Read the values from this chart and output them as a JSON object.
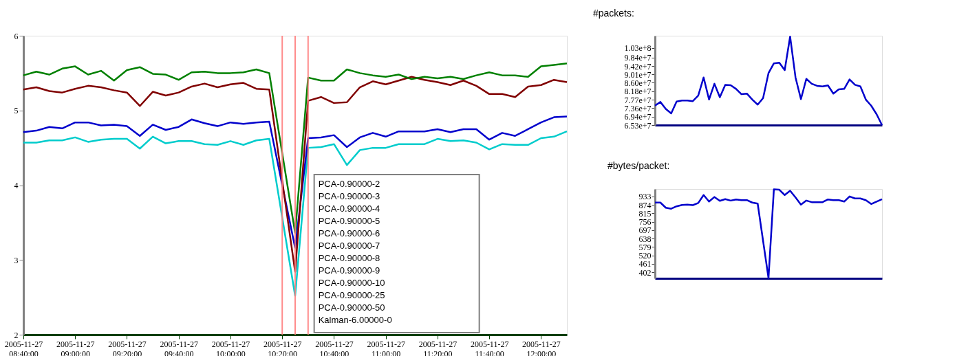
{
  "chart_data": [
    {
      "type": "line",
      "x": [
        "2005-11-27T08:40",
        "2005-11-27T08:45",
        "2005-11-27T08:50",
        "2005-11-27T08:55",
        "2005-11-27T09:00",
        "2005-11-27T09:05",
        "2005-11-27T09:10",
        "2005-11-27T09:15",
        "2005-11-27T09:20",
        "2005-11-27T09:25",
        "2005-11-27T09:30",
        "2005-11-27T09:35",
        "2005-11-27T09:40",
        "2005-11-27T09:45",
        "2005-11-27T09:50",
        "2005-11-27T09:55",
        "2005-11-27T10:00",
        "2005-11-27T10:05",
        "2005-11-27T10:10",
        "2005-11-27T10:15",
        "2005-11-27T10:25",
        "2005-11-27T10:30",
        "2005-11-27T10:35",
        "2005-11-27T10:40",
        "2005-11-27T10:45",
        "2005-11-27T10:50",
        "2005-11-27T10:55",
        "2005-11-27T11:00",
        "2005-11-27T11:05",
        "2005-11-27T11:10",
        "2005-11-27T11:15",
        "2005-11-27T11:20",
        "2005-11-27T11:25",
        "2005-11-27T11:30",
        "2005-11-27T11:35",
        "2005-11-27T11:40",
        "2005-11-27T11:45",
        "2005-11-27T11:50",
        "2005-11-27T11:55",
        "2005-11-27T12:00",
        "2005-11-27T12:05",
        "2005-11-27T12:10"
      ],
      "series": [
        {
          "color": "#00cccc",
          "values": [
            4.57,
            4.57,
            4.6,
            4.6,
            4.64,
            4.58,
            4.61,
            4.62,
            4.62,
            4.49,
            4.65,
            4.56,
            4.59,
            4.59,
            4.55,
            4.54,
            4.59,
            4.54,
            4.6,
            4.62,
            2.52,
            4.5,
            4.51,
            4.55,
            4.27,
            4.47,
            4.5,
            4.5,
            4.55,
            4.55,
            4.55,
            4.62,
            4.59,
            4.6,
            4.57,
            4.48,
            4.55,
            4.54,
            4.54,
            4.63,
            4.65,
            4.72
          ]
        },
        {
          "color": "#0000cc",
          "values": [
            4.71,
            4.73,
            4.78,
            4.76,
            4.84,
            4.84,
            4.8,
            4.81,
            4.79,
            4.66,
            4.81,
            4.74,
            4.78,
            4.88,
            4.83,
            4.79,
            4.84,
            4.82,
            4.84,
            4.85,
            3.16,
            4.63,
            4.64,
            4.67,
            4.51,
            4.64,
            4.7,
            4.65,
            4.72,
            4.72,
            4.72,
            4.75,
            4.71,
            4.75,
            4.75,
            4.61,
            4.7,
            4.66,
            4.75,
            4.84,
            4.91,
            4.92
          ]
        },
        {
          "color": "#800000",
          "values": [
            5.28,
            5.31,
            5.26,
            5.24,
            5.29,
            5.33,
            5.31,
            5.27,
            5.24,
            5.06,
            5.25,
            5.2,
            5.24,
            5.32,
            5.36,
            5.31,
            5.35,
            5.37,
            5.29,
            5.28,
            2.84,
            5.13,
            5.18,
            5.1,
            5.11,
            5.31,
            5.39,
            5.35,
            5.4,
            5.45,
            5.41,
            5.38,
            5.34,
            5.4,
            5.33,
            5.22,
            5.22,
            5.18,
            5.32,
            5.34,
            5.41,
            5.38
          ]
        },
        {
          "color": "#008000",
          "values": [
            5.47,
            5.52,
            5.48,
            5.56,
            5.59,
            5.48,
            5.53,
            5.4,
            5.54,
            5.58,
            5.49,
            5.48,
            5.41,
            5.51,
            5.52,
            5.5,
            5.5,
            5.51,
            5.55,
            5.5,
            3.36,
            5.44,
            5.4,
            5.4,
            5.55,
            5.5,
            5.47,
            5.45,
            5.48,
            5.42,
            5.45,
            5.43,
            5.45,
            5.42,
            5.47,
            5.51,
            5.47,
            5.47,
            5.45,
            5.59,
            5.61,
            5.63
          ]
        }
      ],
      "xlim": [
        "2005-11-27T08:40",
        "2005-11-27T12:10"
      ],
      "xticks": [
        {
          "value": "2005-11-27T08:40",
          "label": "2005-11-27 08:40:00"
        },
        {
          "value": "2005-11-27T09:00",
          "label": "2005-11-27 09:00:00"
        },
        {
          "value": "2005-11-27T09:20",
          "label": "2005-11-27 09:20:00"
        },
        {
          "value": "2005-11-27T09:40",
          "label": "2005-11-27 09:40:00"
        },
        {
          "value": "2005-11-27T10:00",
          "label": "2005-11-27 10:00:00"
        },
        {
          "value": "2005-11-27T10:20",
          "label": "2005-11-27 10:20:00"
        },
        {
          "value": "2005-11-27T10:40",
          "label": "2005-11-27 10:40:00"
        },
        {
          "value": "2005-11-27T11:00",
          "label": "2005-11-27 11:00:00"
        },
        {
          "value": "2005-11-27T11:20",
          "label": "2005-11-27 11:20:00"
        },
        {
          "value": "2005-11-27T11:40",
          "label": "2005-11-27 11:40:00"
        },
        {
          "value": "2005-11-27T12:00",
          "label": "2005-11-27 12:00:00"
        }
      ],
      "ylim": [
        2,
        6
      ],
      "yticks": [
        2,
        3,
        4,
        5,
        6
      ],
      "ref_lines": [
        {
          "axis": "x",
          "value": "2005-11-27T10:20",
          "color": "#ff8080"
        },
        {
          "axis": "x",
          "value": "2005-11-27T10:25",
          "color": "#ff8080"
        },
        {
          "axis": "x",
          "value": "2005-11-27T10:30",
          "color": "#ff8080"
        }
      ],
      "annotations": [
        "PCA-0.90000-2",
        "PCA-0.90000-3",
        "PCA-0.90000-4",
        "PCA-0.90000-5",
        "PCA-0.90000-6",
        "PCA-0.90000-7",
        "PCA-0.90000-8",
        "PCA-0.90000-9",
        "PCA-0.90000-10",
        "PCA-0.90000-25",
        "PCA-0.90000-50",
        "Kalman-6.00000-0"
      ]
    },
    {
      "type": "line",
      "title": "#packets:",
      "categories": [
        null,
        null,
        null,
        null,
        null,
        null,
        null,
        null,
        null,
        null,
        null,
        null,
        null,
        null,
        null,
        null,
        null,
        null,
        null,
        null,
        null,
        null,
        null,
        null,
        null,
        null,
        null,
        null,
        null,
        null,
        null,
        null,
        null,
        null,
        null,
        null,
        null,
        null,
        null,
        null,
        null,
        null,
        null
      ],
      "series": [
        {
          "color": "#0000cc",
          "values": [
            74800000,
            76600000,
            73200000,
            71000000,
            76800000,
            77300000,
            77300000,
            77000000,
            79700000,
            88600000,
            77800000,
            85500000,
            78900000,
            85000000,
            84800000,
            83000000,
            80400000,
            80700000,
            77800000,
            75300000,
            78500000,
            90700000,
            95500000,
            95800000,
            92200000,
            108600000,
            88600000,
            78000000,
            87900000,
            85500000,
            84500000,
            84200000,
            84700000,
            80700000,
            82800000,
            83000000,
            87600000,
            85000000,
            84200000,
            77800000,
            74800000,
            70600000,
            65300000
          ]
        }
      ],
      "ylim": [
        65300000,
        109000000
      ],
      "yticks": [
        {
          "value": 65300000,
          "label": "6.53e+7"
        },
        {
          "value": 69400000,
          "label": "6.94e+7"
        },
        {
          "value": 73600000,
          "label": "7.36e+7"
        },
        {
          "value": 77700000,
          "label": "7.77e+7"
        },
        {
          "value": 81800000,
          "label": "8.18e+7"
        },
        {
          "value": 86000000,
          "label": "8.60e+7"
        },
        {
          "value": 90100000,
          "label": "9.01e+7"
        },
        {
          "value": 94200000,
          "label": "9.42e+7"
        },
        {
          "value": 98400000,
          "label": "9.84e+7"
        },
        {
          "value": 103000000,
          "label": "1.03e+8"
        }
      ],
      "tick_labels": "y"
    },
    {
      "type": "line",
      "title": "#bytes/packet:",
      "categories": [
        null,
        null,
        null,
        null,
        null,
        null,
        null,
        null,
        null,
        null,
        null,
        null,
        null,
        null,
        null,
        null,
        null,
        null,
        null,
        null,
        null,
        null,
        null,
        null,
        null,
        null,
        null,
        null,
        null,
        null,
        null,
        null,
        null,
        null,
        null,
        null,
        null,
        null,
        null,
        null,
        null,
        null,
        null
      ],
      "series": [
        {
          "color": "#0000cc",
          "values": [
            890,
            890,
            854,
            847,
            864,
            873,
            876,
            872,
            887,
            943,
            897,
            929,
            902,
            914,
            904,
            912,
            907,
            907,
            890,
            883,
            622,
            362,
            983,
            980,
            943,
            973,
            926,
            876,
            904,
            893,
            893,
            893,
            912,
            907,
            907,
            897,
            933,
            919,
            919,
            907,
            880,
            897,
            914
          ]
        }
      ],
      "ylim": [
        360,
        985
      ],
      "yticks": [
        402,
        461,
        520,
        579,
        638,
        697,
        756,
        815,
        874,
        933
      ],
      "tick_labels": "y"
    }
  ]
}
